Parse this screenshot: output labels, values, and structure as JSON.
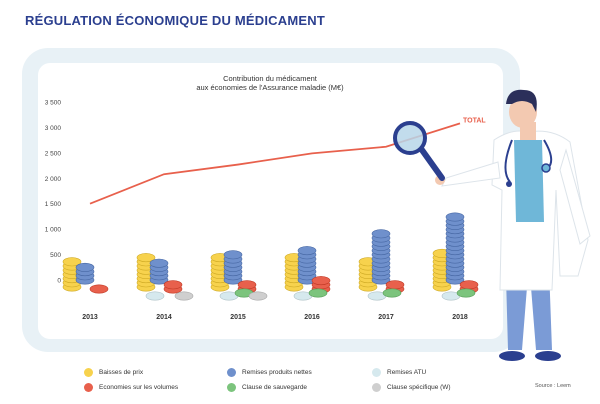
{
  "page": {
    "title": "RÉGULATION ÉCONOMIQUE DU MÉDICAMENT",
    "source": "Source : Leem"
  },
  "chart_data": {
    "type": "line",
    "title": "Contribution du médicament",
    "subtitle": "aux économies de l'Assurance maladie (M€)",
    "xlabel": "",
    "ylabel": "",
    "ylim": [
      0,
      3500
    ],
    "y_ticks": [
      "3 500",
      "3 000",
      "2 500",
      "2 000",
      "1 500",
      "1 000",
      "500",
      "0"
    ],
    "x": [
      "2013",
      "2014",
      "2015",
      "2016",
      "2017",
      "2018"
    ],
    "series": [
      {
        "name": "TOTAL",
        "color": "#e8604c",
        "values": [
          1500,
          2080,
          2270,
          2490,
          2620,
          3080
        ]
      }
    ],
    "coin_stacks": [
      {
        "name": "Baisses de prix",
        "color": "#f7d24d",
        "values": [
          600,
          690,
          620,
          620,
          580,
          710
        ]
      },
      {
        "name": "Remises produits nettes",
        "color": "#6f90cc",
        "values": [
          350,
          420,
          560,
          620,
          1000,
          1290
        ]
      },
      {
        "name": "Economies sur les volumes",
        "color": "#e8604c",
        "values": [
          100,
          180,
          180,
          210,
          180,
          180
        ]
      },
      {
        "name": "Remises ATU",
        "color": "#d6e9ee",
        "values": [
          0,
          60,
          40,
          40,
          40,
          30
        ]
      },
      {
        "name": "Clause de sauvegarde",
        "color": "#7cc47d",
        "values": [
          0,
          0,
          60,
          80,
          60,
          70
        ]
      },
      {
        "name": "Clause spécifique (W)",
        "color": "#cfcfcf",
        "values": [
          0,
          40,
          30,
          0,
          0,
          0
        ]
      }
    ]
  },
  "legend": {
    "items": [
      {
        "label": "Baisses de prix",
        "color": "#f7d24d"
      },
      {
        "label": "Remises produits nettes",
        "color": "#6f90cc"
      },
      {
        "label": "Remises ATU",
        "color": "#d6e9ee"
      },
      {
        "label": "Economies sur les volumes",
        "color": "#e8604c"
      },
      {
        "label": "Clause de sauvegarde",
        "color": "#7cc47d"
      },
      {
        "label": "Clause spécifique (W)",
        "color": "#cfcfcf"
      }
    ]
  },
  "illustration": {
    "figure": "doctor-with-magnifier",
    "colors": {
      "coat": "#ffffff",
      "shirt": "#6fb7d8",
      "pants": "#7b9bd6",
      "hair": "#2b2f5a",
      "skin": "#f3c9b1",
      "glass": "#b7d6e9"
    }
  }
}
